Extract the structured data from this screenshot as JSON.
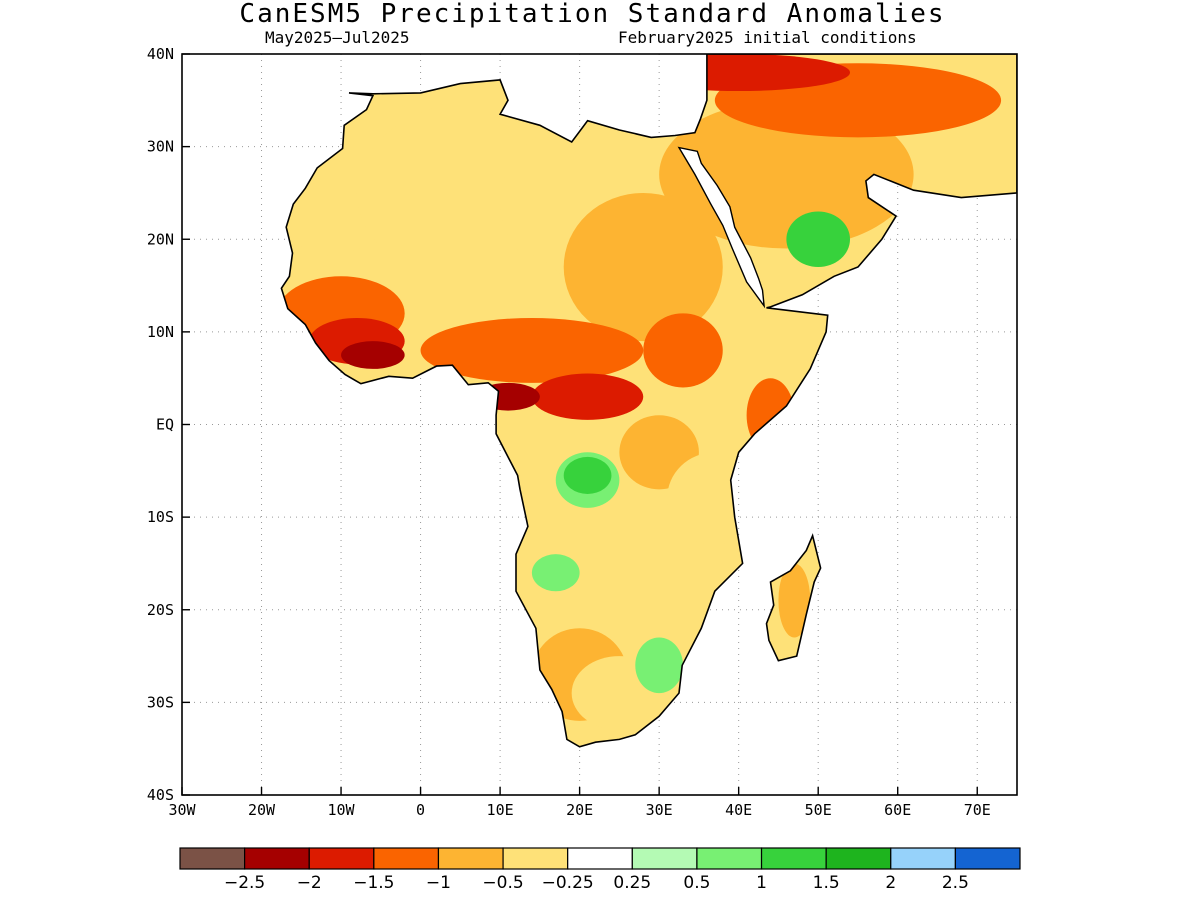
{
  "title": "CanESM5 Precipitation Standard Anomalies",
  "subtitle_left": "May2025—Jul2025",
  "subtitle_right": "February2025 initial conditions",
  "map": {
    "lon_range": [
      -30,
      75
    ],
    "lat_range": [
      -40,
      40
    ],
    "lat_ticks": [
      {
        "value": 40,
        "label": "40N"
      },
      {
        "value": 30,
        "label": "30N"
      },
      {
        "value": 20,
        "label": "20N"
      },
      {
        "value": 10,
        "label": "10N"
      },
      {
        "value": 0,
        "label": "EQ"
      },
      {
        "value": -10,
        "label": "10S"
      },
      {
        "value": -20,
        "label": "20S"
      },
      {
        "value": -30,
        "label": "30S"
      },
      {
        "value": -40,
        "label": "40S"
      }
    ],
    "lon_ticks": [
      {
        "value": -30,
        "label": "30W"
      },
      {
        "value": -20,
        "label": "20W"
      },
      {
        "value": -10,
        "label": "10W"
      },
      {
        "value": 0,
        "label": "0"
      },
      {
        "value": 10,
        "label": "10E"
      },
      {
        "value": 20,
        "label": "20E"
      },
      {
        "value": 30,
        "label": "30E"
      },
      {
        "value": 40,
        "label": "40E"
      },
      {
        "value": 50,
        "label": "50E"
      },
      {
        "value": 60,
        "label": "60E"
      },
      {
        "value": 70,
        "label": "70E"
      }
    ],
    "grid": true
  },
  "colorbar": {
    "colors": [
      "#7b5246",
      "#a50000",
      "#dc1b00",
      "#fa6400",
      "#fdb432",
      "#fee178",
      "#ffffff",
      "#b4fab4",
      "#78f073",
      "#37d23c",
      "#1eb41e",
      "#96d2fa",
      "#1464d2"
    ],
    "labels": [
      "−2.5",
      "−2",
      "−1.5",
      "−1",
      "−0.5",
      "−0.25",
      "0.25",
      "0.5",
      "1",
      "1.5",
      "2",
      "2.5"
    ]
  },
  "anomaly_regions": [
    {
      "level": -0.5,
      "lon": -9,
      "lat": 27,
      "rx": 12,
      "ry": 9
    },
    {
      "level": -0.5,
      "lon": 8,
      "lat": 25,
      "rx": 16,
      "ry": 10
    },
    {
      "level": -0.5,
      "lon": 22,
      "lat": 24,
      "rx": 12,
      "ry": 9
    },
    {
      "level": -1,
      "lon": 28,
      "lat": 17,
      "rx": 10,
      "ry": 8
    },
    {
      "level": -0.5,
      "lon": 2,
      "lat": 15,
      "rx": 16,
      "ry": 5
    },
    {
      "level": -1.5,
      "lon": -10,
      "lat": 12,
      "rx": 8,
      "ry": 4
    },
    {
      "level": -2,
      "lon": -8,
      "lat": 9,
      "rx": 6,
      "ry": 2.5
    },
    {
      "level": -2.5,
      "lon": -6,
      "lat": 7.5,
      "rx": 4,
      "ry": 1.5
    },
    {
      "level": -1.5,
      "lon": 14,
      "lat": 8,
      "rx": 14,
      "ry": 3.5
    },
    {
      "level": -2,
      "lon": 21,
      "lat": 3,
      "rx": 7,
      "ry": 2.5
    },
    {
      "level": -2.5,
      "lon": 11,
      "lat": 3,
      "rx": 4,
      "ry": 1.5
    },
    {
      "level": -1.5,
      "lon": 33,
      "lat": 8,
      "rx": 5,
      "ry": 4
    },
    {
      "level": -1.5,
      "lon": 44,
      "lat": 1,
      "rx": 3,
      "ry": 4
    },
    {
      "level": -1,
      "lon": 46,
      "lat": 27,
      "rx": 16,
      "ry": 8
    },
    {
      "level": -1.5,
      "lon": 55,
      "lat": 35,
      "rx": 18,
      "ry": 4
    },
    {
      "level": -2,
      "lon": 40,
      "lat": 38,
      "rx": 14,
      "ry": 2
    },
    {
      "level": -1,
      "lon": 30,
      "lat": -3,
      "rx": 5,
      "ry": 4
    },
    {
      "level": -0.5,
      "lon": 37,
      "lat": -8,
      "rx": 6,
      "ry": 5
    },
    {
      "level": -1,
      "lon": 47,
      "lat": -19,
      "rx": 2,
      "ry": 4
    },
    {
      "level": -1,
      "lon": 20,
      "lat": -27,
      "rx": 6,
      "ry": 5
    },
    {
      "level": -0.5,
      "lon": 25,
      "lat": -29,
      "rx": 6,
      "ry": 4
    },
    {
      "level": 0.5,
      "lon": 21,
      "lat": -6,
      "rx": 4,
      "ry": 3
    },
    {
      "level": 1,
      "lon": 21,
      "lat": -5.5,
      "rx": 3,
      "ry": 2
    },
    {
      "level": 0.5,
      "lon": 17,
      "lat": -16,
      "rx": 3,
      "ry": 2
    },
    {
      "level": 0.5,
      "lon": 30,
      "lat": -26,
      "rx": 3,
      "ry": 3
    },
    {
      "level": 1,
      "lon": 50,
      "lat": 20,
      "rx": 4,
      "ry": 3
    }
  ],
  "coastline": [
    [
      -9,
      35.8
    ],
    [
      -6,
      35.7
    ],
    [
      0,
      35.8
    ],
    [
      5,
      36.8
    ],
    [
      10,
      37.2
    ],
    [
      11,
      35
    ],
    [
      10,
      33.5
    ],
    [
      15,
      32.3
    ],
    [
      19,
      30.5
    ],
    [
      21,
      32.8
    ],
    [
      25,
      31.8
    ],
    [
      29,
      31
    ],
    [
      32,
      31.2
    ],
    [
      34.5,
      31.5
    ],
    [
      35.2,
      33
    ],
    [
      36,
      35
    ],
    [
      36,
      37
    ],
    [
      36,
      40
    ],
    [
      75,
      40
    ],
    [
      75,
      25
    ],
    [
      68,
      24.5
    ],
    [
      62,
      25.3
    ],
    [
      57,
      27
    ],
    [
      56,
      26.3
    ],
    [
      56.3,
      24.5
    ],
    [
      59.8,
      22.5
    ],
    [
      58,
      20
    ],
    [
      55,
      17
    ],
    [
      52,
      16
    ],
    [
      48,
      14
    ],
    [
      44,
      12.7
    ],
    [
      43.5,
      12.6
    ],
    [
      51.2,
      11.8
    ],
    [
      51,
      10
    ],
    [
      49,
      6
    ],
    [
      46,
      2
    ],
    [
      42,
      -1
    ],
    [
      40,
      -3
    ],
    [
      39,
      -6
    ],
    [
      39.5,
      -10
    ],
    [
      40.5,
      -15
    ],
    [
      37,
      -18
    ],
    [
      35.3,
      -22
    ],
    [
      32.9,
      -26
    ],
    [
      32.5,
      -29
    ],
    [
      30,
      -31.5
    ],
    [
      27,
      -33.5
    ],
    [
      25,
      -34
    ],
    [
      22,
      -34.3
    ],
    [
      20,
      -34.8
    ],
    [
      18.4,
      -34
    ],
    [
      17.8,
      -31
    ],
    [
      16.5,
      -28.6
    ],
    [
      15,
      -26.5
    ],
    [
      14.5,
      -22
    ],
    [
      12,
      -18
    ],
    [
      12,
      -14
    ],
    [
      13.5,
      -11
    ],
    [
      12.5,
      -7
    ],
    [
      12.2,
      -5.5
    ],
    [
      11,
      -3.5
    ],
    [
      9.5,
      -1
    ],
    [
      9.5,
      1
    ],
    [
      9.8,
      3.6
    ],
    [
      8.5,
      4.5
    ],
    [
      6,
      4.3
    ],
    [
      4,
      6.4
    ],
    [
      2,
      6.3
    ],
    [
      -1,
      5
    ],
    [
      -4,
      5.2
    ],
    [
      -7.5,
      4.4
    ],
    [
      -9.5,
      5.4
    ],
    [
      -11.5,
      6.9
    ],
    [
      -13.2,
      8.8
    ],
    [
      -14.5,
      10.8
    ],
    [
      -16.7,
      12.5
    ],
    [
      -17.5,
      14.7
    ],
    [
      -16.5,
      16
    ],
    [
      -16.1,
      18.5
    ],
    [
      -16.9,
      21.3
    ],
    [
      -16,
      23.8
    ],
    [
      -14.5,
      25.5
    ],
    [
      -13,
      27.7
    ],
    [
      -9.8,
      29.8
    ],
    [
      -9.6,
      32.3
    ],
    [
      -6.8,
      34
    ],
    [
      -6,
      35.5
    ],
    [
      -9,
      35.8
    ]
  ],
  "madagascar": [
    [
      49.3,
      -12
    ],
    [
      50.3,
      -15.5
    ],
    [
      49.5,
      -17
    ],
    [
      48.5,
      -20.5
    ],
    [
      47.3,
      -25
    ],
    [
      45,
      -25.5
    ],
    [
      43.8,
      -23.3
    ],
    [
      43.5,
      -21.5
    ],
    [
      44.4,
      -19.5
    ],
    [
      44,
      -17
    ],
    [
      46.5,
      -15.8
    ],
    [
      48.5,
      -13.6
    ],
    [
      49.3,
      -12
    ]
  ],
  "red_sea": [
    [
      32.5,
      29.9
    ],
    [
      34.5,
      27
    ],
    [
      36.5,
      23.8
    ],
    [
      38,
      21.5
    ],
    [
      39.2,
      19
    ],
    [
      41,
      15.4
    ],
    [
      43.2,
      12.8
    ],
    [
      43,
      14.5
    ],
    [
      42.5,
      15.8
    ],
    [
      41.5,
      18
    ],
    [
      39.5,
      21.3
    ],
    [
      38.9,
      23.5
    ],
    [
      37.3,
      25.8
    ],
    [
      35.3,
      28.2
    ],
    [
      34.8,
      29.5
    ]
  ]
}
